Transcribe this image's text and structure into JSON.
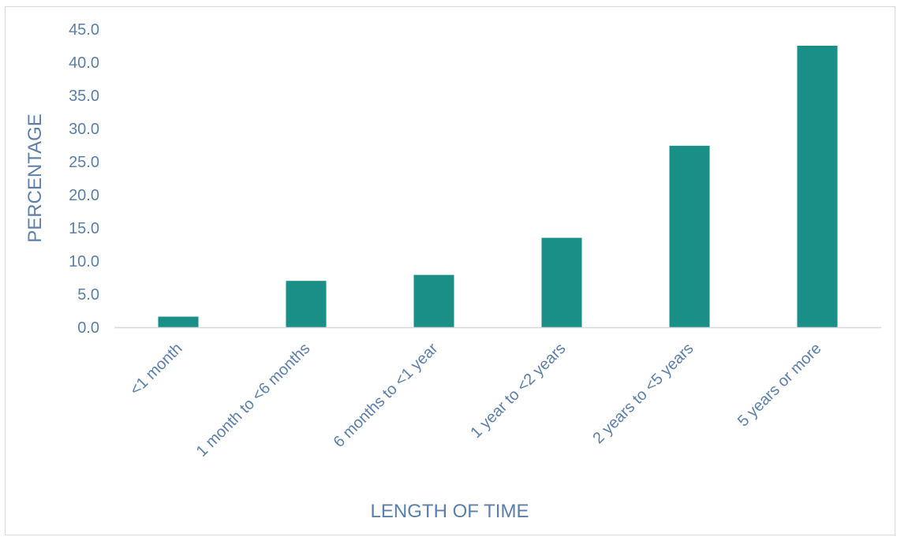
{
  "chart_data": {
    "type": "bar",
    "categories": [
      "<1 month",
      "1 month to <6 months",
      "6 months to <1 year",
      "1 year to <2 years",
      "2 years to <5 years",
      "5 years or more"
    ],
    "values": [
      1.6,
      7.0,
      7.9,
      13.5,
      27.4,
      42.5
    ],
    "title": "",
    "xlabel": "LENGTH OF TIME",
    "ylabel": "PERCENTAGE",
    "ylim": [
      0,
      45
    ],
    "yticks": [
      "0.0",
      "5.0",
      "10.0",
      "15.0",
      "20.0",
      "25.0",
      "30.0",
      "35.0",
      "40.0",
      "45.0"
    ],
    "grid": false,
    "legend": "none",
    "colors": {
      "bar": "#1a8f88",
      "text": "#5b7fa8",
      "axis": "#d9d9d9"
    }
  }
}
